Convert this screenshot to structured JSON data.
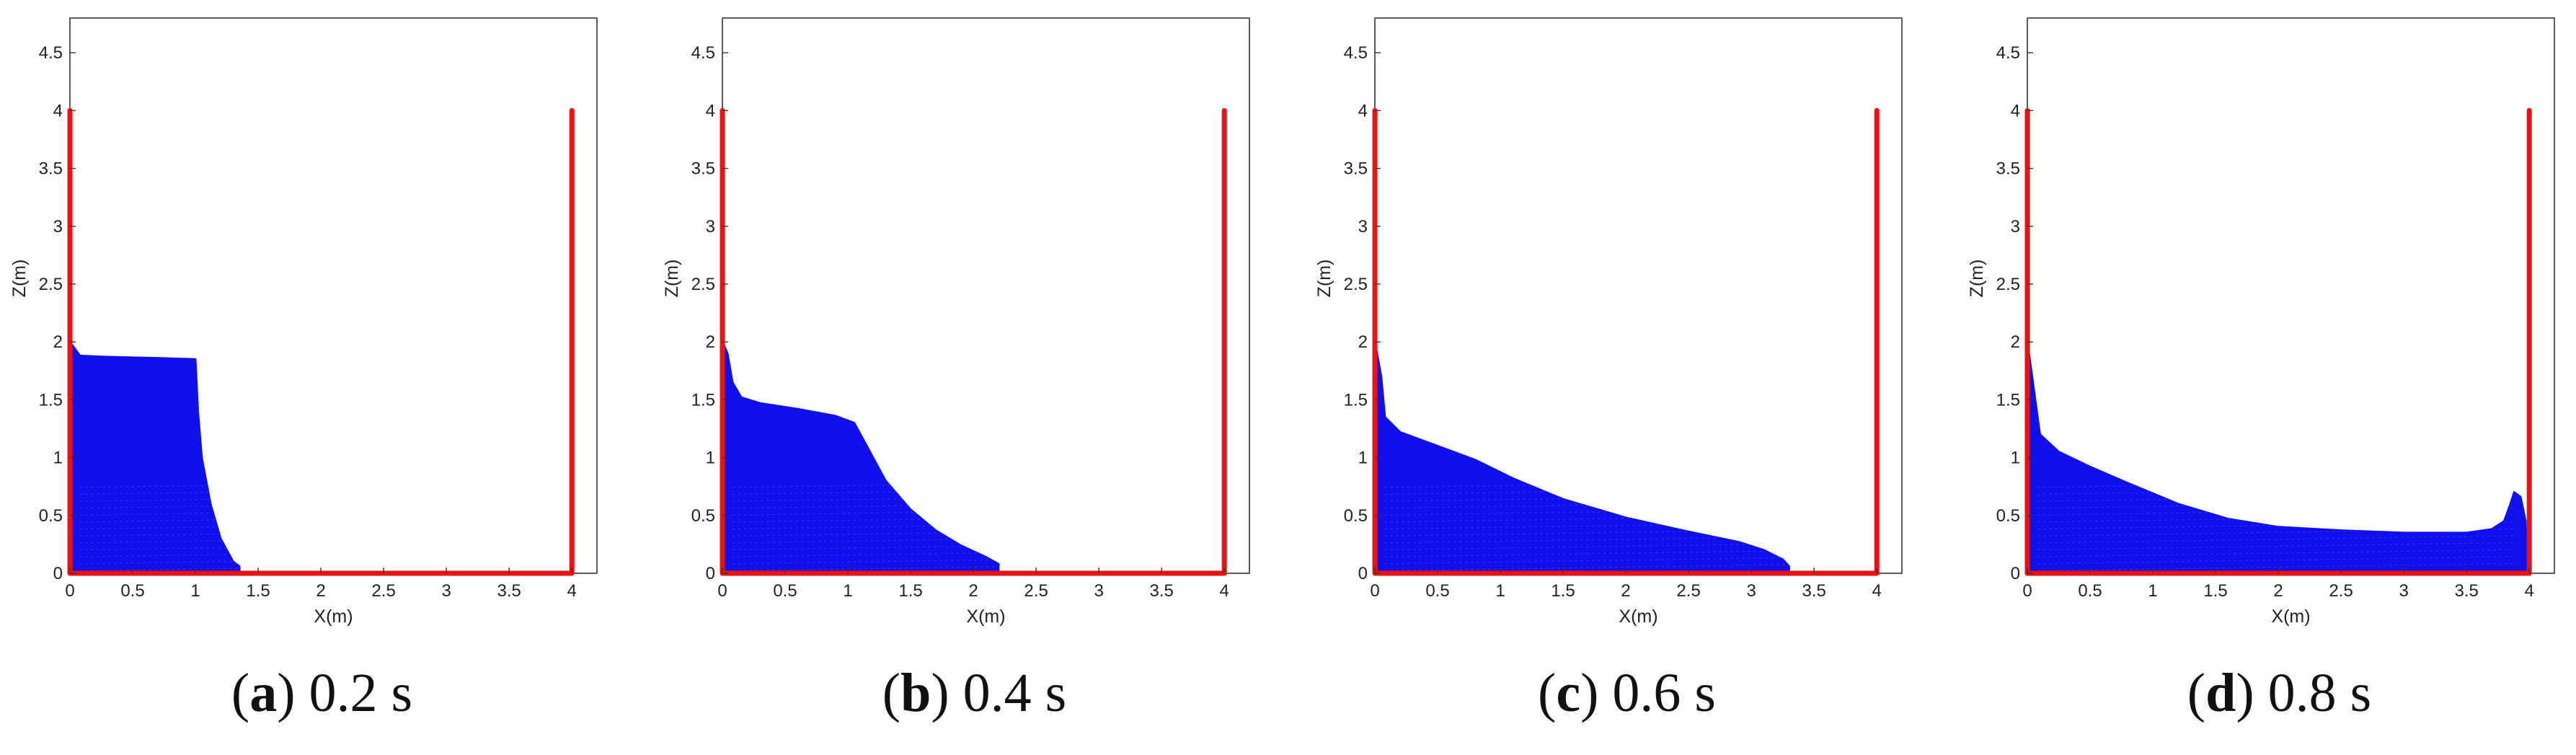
{
  "chart_data": [
    {
      "type": "scatter",
      "caption": {
        "letter": "a",
        "time": "0.2 s"
      },
      "xlabel": "X(m)",
      "ylabel": "Z(m)",
      "xlim": [
        0,
        4.2
      ],
      "ylim": [
        0,
        4.8
      ],
      "xticks": [
        "0",
        "0.5",
        "1",
        "1.5",
        "2",
        "2.5",
        "3",
        "3.5",
        "4"
      ],
      "yticks": [
        "0",
        "0.5",
        "1",
        "1.5",
        "2",
        "2.5",
        "3",
        "3.5",
        "4",
        "4.5"
      ],
      "grid": false,
      "colors": {
        "fluid": "#1010ee",
        "boundary": "#ee1111"
      },
      "series": [
        {
          "role": "fluid",
          "outline": [
            [
              0,
              0
            ],
            [
              0,
              2
            ],
            [
              0.08,
              1.88
            ],
            [
              0.3,
              1.87
            ],
            [
              0.7,
              1.86
            ],
            [
              1.0,
              1.85
            ],
            [
              1.02,
              1.4
            ],
            [
              1.05,
              1.0
            ],
            [
              1.12,
              0.6
            ],
            [
              1.2,
              0.3
            ],
            [
              1.3,
              0.1
            ],
            [
              1.35,
              0.06
            ],
            [
              1.35,
              0
            ]
          ]
        },
        {
          "role": "boundary",
          "outline": [
            [
              0,
              4
            ],
            [
              0,
              0
            ],
            [
              4,
              0
            ],
            [
              4,
              4
            ]
          ]
        }
      ]
    },
    {
      "type": "scatter",
      "caption": {
        "letter": "b",
        "time": "0.4 s"
      },
      "xlabel": "X(m)",
      "ylabel": "Z(m)",
      "xlim": [
        0,
        4.2
      ],
      "ylim": [
        0,
        4.8
      ],
      "xticks": [
        "0",
        "0.5",
        "1",
        "1.5",
        "2",
        "2.5",
        "3",
        "3.5",
        "4"
      ],
      "yticks": [
        "0",
        "0.5",
        "1",
        "1.5",
        "2",
        "2.5",
        "3",
        "3.5",
        "4",
        "4.5"
      ],
      "grid": false,
      "colors": {
        "fluid": "#1010ee",
        "boundary": "#ee1111"
      },
      "series": [
        {
          "role": "fluid",
          "outline": [
            [
              0,
              0
            ],
            [
              0,
              2
            ],
            [
              0.04,
              1.9
            ],
            [
              0.08,
              1.65
            ],
            [
              0.15,
              1.52
            ],
            [
              0.3,
              1.47
            ],
            [
              0.6,
              1.42
            ],
            [
              0.9,
              1.36
            ],
            [
              1.05,
              1.3
            ],
            [
              1.15,
              1.1
            ],
            [
              1.3,
              0.8
            ],
            [
              1.5,
              0.55
            ],
            [
              1.7,
              0.37
            ],
            [
              1.9,
              0.24
            ],
            [
              2.1,
              0.14
            ],
            [
              2.2,
              0.08
            ],
            [
              2.2,
              0
            ]
          ]
        },
        {
          "role": "boundary",
          "outline": [
            [
              0,
              4
            ],
            [
              0,
              0
            ],
            [
              4,
              0
            ],
            [
              4,
              4
            ]
          ]
        }
      ]
    },
    {
      "type": "scatter",
      "caption": {
        "letter": "c",
        "time": "0.6 s"
      },
      "xlabel": "X(m)",
      "ylabel": "Z(m)",
      "xlim": [
        0,
        4.2
      ],
      "ylim": [
        0,
        4.8
      ],
      "xticks": [
        "0",
        "0.5",
        "1",
        "1.5",
        "2",
        "2.5",
        "3",
        "3.5",
        "4"
      ],
      "yticks": [
        "0",
        "0.5",
        "1",
        "1.5",
        "2",
        "2.5",
        "3",
        "3.5",
        "4",
        "4.5"
      ],
      "grid": false,
      "colors": {
        "fluid": "#1010ee",
        "boundary": "#ee1111"
      },
      "series": [
        {
          "role": "fluid",
          "outline": [
            [
              0,
              0
            ],
            [
              0,
              2
            ],
            [
              0.05,
              1.7
            ],
            [
              0.08,
              1.35
            ],
            [
              0.2,
              1.22
            ],
            [
              0.5,
              1.1
            ],
            [
              0.8,
              0.98
            ],
            [
              1.1,
              0.82
            ],
            [
              1.5,
              0.64
            ],
            [
              2.0,
              0.48
            ],
            [
              2.5,
              0.36
            ],
            [
              2.9,
              0.27
            ],
            [
              3.1,
              0.2
            ],
            [
              3.25,
              0.12
            ],
            [
              3.3,
              0.06
            ],
            [
              3.3,
              0
            ]
          ]
        },
        {
          "role": "boundary",
          "outline": [
            [
              0,
              4
            ],
            [
              0,
              0
            ],
            [
              4,
              0
            ],
            [
              4,
              4
            ]
          ]
        }
      ]
    },
    {
      "type": "scatter",
      "caption": {
        "letter": "d",
        "time": "0.8 s"
      },
      "xlabel": "X(m)",
      "ylabel": "Z(m)",
      "xlim": [
        0,
        4.2
      ],
      "ylim": [
        0,
        4.8
      ],
      "xticks": [
        "0",
        "0.5",
        "1",
        "1.5",
        "2",
        "2.5",
        "3",
        "3.5",
        "4"
      ],
      "yticks": [
        "0",
        "0.5",
        "1",
        "1.5",
        "2",
        "2.5",
        "3",
        "3.5",
        "4",
        "4.5"
      ],
      "grid": false,
      "colors": {
        "fluid": "#1010ee",
        "boundary": "#ee1111"
      },
      "series": [
        {
          "role": "fluid",
          "outline": [
            [
              0,
              0
            ],
            [
              0,
              2
            ],
            [
              0.05,
              1.6
            ],
            [
              0.1,
              1.2
            ],
            [
              0.25,
              1.05
            ],
            [
              0.5,
              0.92
            ],
            [
              0.8,
              0.78
            ],
            [
              1.2,
              0.6
            ],
            [
              1.6,
              0.47
            ],
            [
              2.0,
              0.4
            ],
            [
              2.5,
              0.37
            ],
            [
              3.0,
              0.35
            ],
            [
              3.5,
              0.35
            ],
            [
              3.7,
              0.38
            ],
            [
              3.8,
              0.45
            ],
            [
              3.85,
              0.6
            ],
            [
              3.88,
              0.7
            ],
            [
              3.93,
              0.66
            ],
            [
              3.97,
              0.45
            ],
            [
              3.98,
              0.1
            ],
            [
              3.98,
              0
            ]
          ]
        },
        {
          "role": "boundary",
          "outline": [
            [
              0,
              4
            ],
            [
              0,
              0
            ],
            [
              4,
              0
            ],
            [
              4,
              4
            ]
          ]
        }
      ]
    }
  ]
}
